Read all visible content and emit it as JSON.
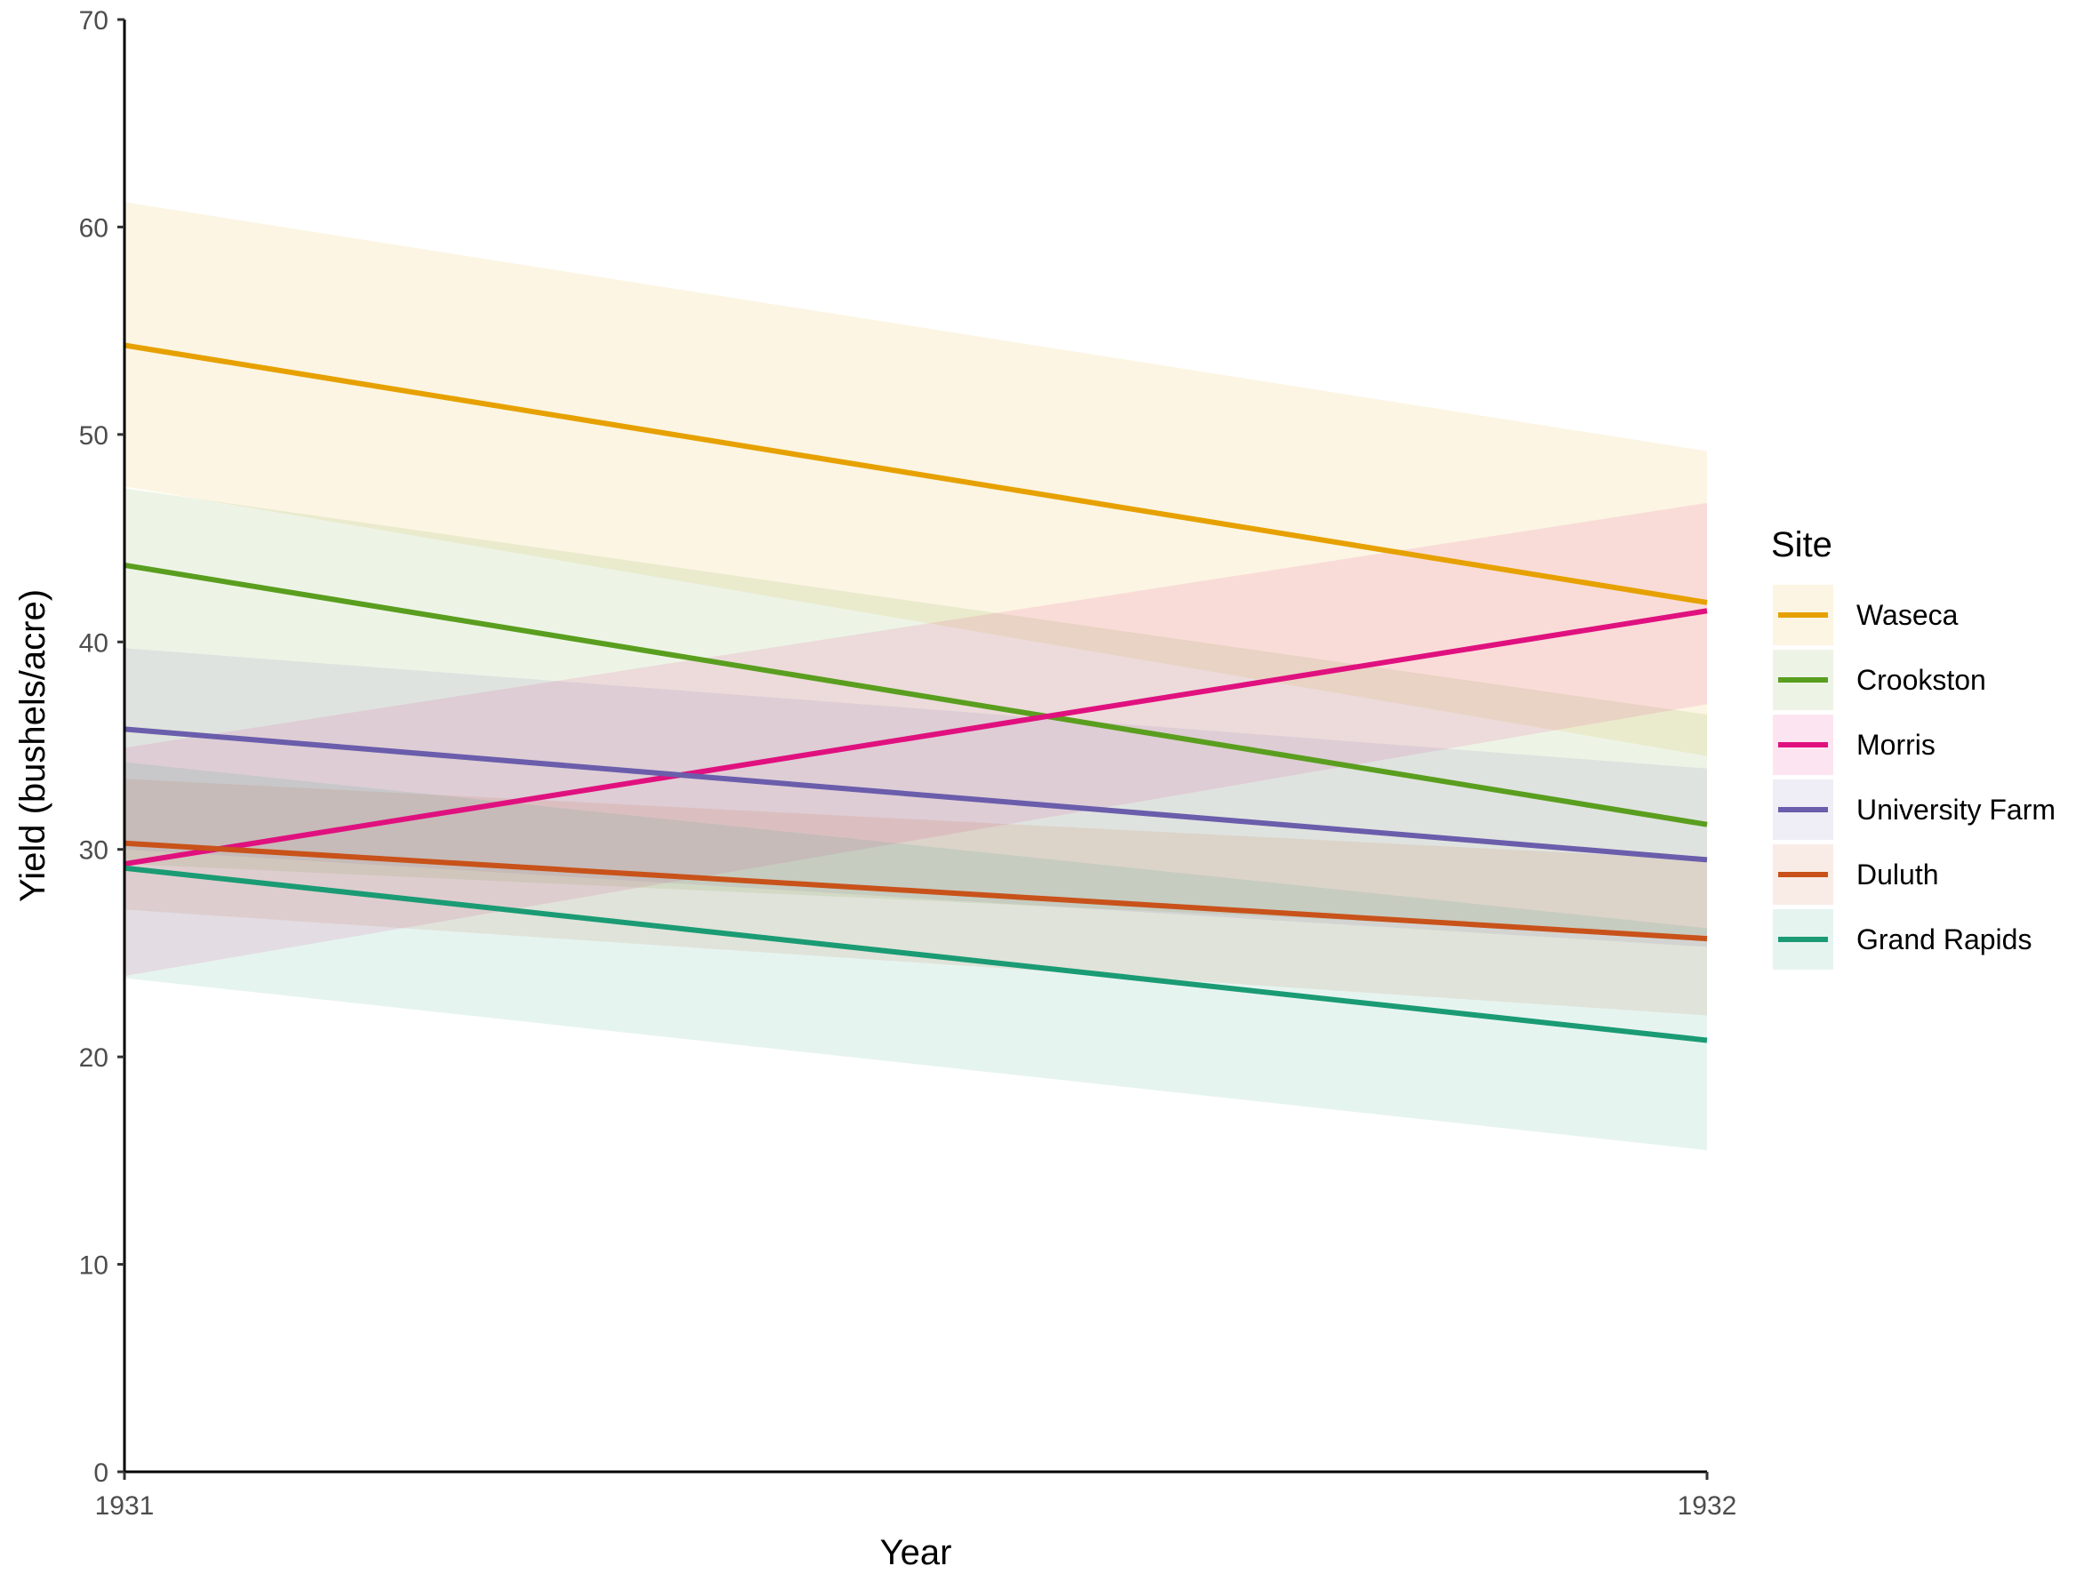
{
  "chart_data": {
    "type": "line",
    "xlabel": "Year",
    "ylabel": "Yield (bushels/acre)",
    "x": [
      "1931",
      "1932"
    ],
    "ylim": [
      0,
      70
    ],
    "yticks": [
      "0",
      "10",
      "20",
      "30",
      "40",
      "50",
      "60",
      "70"
    ],
    "grid": false,
    "legend": {
      "title": "Site",
      "position": "right"
    },
    "series": [
      {
        "name": "Waseca",
        "color": "#E6A100",
        "values": [
          54.3,
          41.9
        ],
        "lower": [
          47.5,
          34.5
        ],
        "upper": [
          61.2,
          49.2
        ]
      },
      {
        "name": "Crookston",
        "color": "#5A9E1F",
        "values": [
          43.7,
          31.2
        ],
        "lower": [
          29.3,
          25.8
        ],
        "upper": [
          47.4,
          36.5
        ]
      },
      {
        "name": "Morris",
        "color": "#E0117F",
        "values": [
          29.3,
          41.5
        ],
        "lower": [
          23.9,
          37.0
        ],
        "upper": [
          34.9,
          46.7
        ]
      },
      {
        "name": "University Farm",
        "color": "#6A5DAB",
        "values": [
          35.8,
          29.5
        ],
        "lower": [
          30.0,
          25.3
        ],
        "upper": [
          39.7,
          33.9
        ]
      },
      {
        "name": "Duluth",
        "color": "#C8521A",
        "values": [
          30.3,
          25.7
        ],
        "lower": [
          27.1,
          22.0
        ],
        "upper": [
          33.4,
          29.5
        ]
      },
      {
        "name": "Grand Rapids",
        "color": "#1A9B74",
        "values": [
          29.1,
          20.8
        ],
        "lower": [
          23.8,
          15.5
        ],
        "upper": [
          34.2,
          26.2
        ]
      }
    ]
  }
}
